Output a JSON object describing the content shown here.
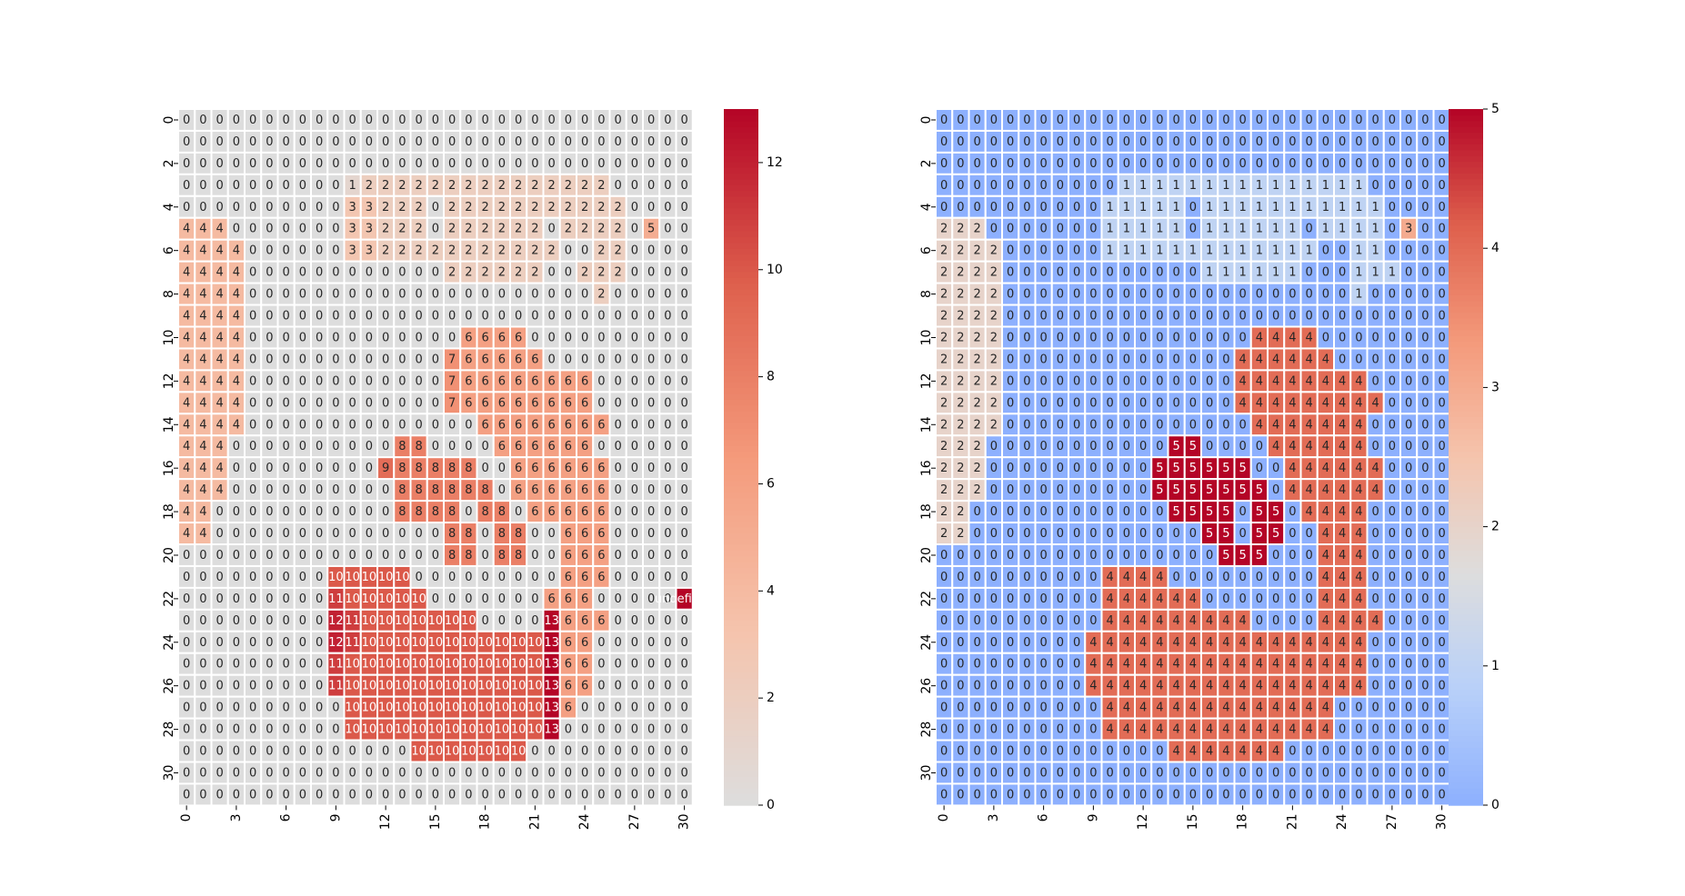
{
  "chart_data": [
    {
      "type": "heatmap",
      "vmin": 0,
      "vmax": 13,
      "colormap": "coolwarm (centered, light gray at 0)",
      "colorbar_ticks": [
        0,
        2,
        4,
        6,
        8,
        10,
        12
      ],
      "x_ticks": [
        0,
        3,
        6,
        9,
        12,
        15,
        18,
        21,
        24,
        27,
        30
      ],
      "y_ticks": [
        0,
        2,
        4,
        6,
        8,
        10,
        12,
        14,
        16,
        18,
        20,
        22,
        24,
        26,
        28,
        30
      ],
      "grid": [
        "0000000000000000000000000000000",
        "0000000000000000000000000000000",
        "0000000000000000000000000000000",
        "0000000000122222222222222200000",
        "0000000000332220222222222220000",
        "4440000000332220222222022220500",
        "4444000000332222222222200220000",
        "4444000000000000222222002220000",
        "4444000000000000000000000200000",
        "4444000000000000000000000000000",
        "4444000000000000066660000000000",
        "4444000000000000766666000000000",
        "4444000000000000766666666000000",
        "4444000000000000766666666000000",
        "4444000000000000006666666600000",
        "4440000000000880000666666000000",
        "4440000000009888880066666600000",
        "4440000000000888888066666600000",
        "4400000000000888808806666600000",
        "4400000000000000880880066600000",
        "0000000000000000880880066600000",
        "000000000AAAAA00000000066600000",
        "000000000BAAAAA000000066600000",
        "000000000CBAAAAAAA0000D66600000",
        "000000000CBAAAAAAAAAAAD66000000",
        "000000000BAAAAAAAAAAAAD66000000",
        "000000000BAAAAAAAAAAAAD66000000",
        "0000000000AAAAAAAAAAAAD60000000",
        "0000000000AAAAAAAAAAAAD00000000",
        "00000000000000AAAAAAA0000000000",
        "0000000000000000000000000000000",
        "0000000000000000000000000000000"
      ]
    },
    {
      "type": "heatmap",
      "vmin": 0,
      "vmax": 5,
      "colormap": "coolwarm",
      "colorbar_ticks": [
        0,
        1,
        2,
        3,
        4,
        5
      ],
      "x_ticks": [
        0,
        3,
        6,
        9,
        12,
        15,
        18,
        21,
        24,
        27,
        30
      ],
      "y_ticks": [
        0,
        2,
        4,
        6,
        8,
        10,
        12,
        14,
        16,
        18,
        20,
        22,
        24,
        26,
        28,
        30
      ],
      "grid": [
        "0000000000000000000000000000000",
        "0000000000000000000000000000000",
        "0000000000000000000000000000000",
        "0000000000011111111111111100000",
        "0000000000111110111111111110000",
        "2220000000111110111111011110300",
        "2222000000111111111111100110000",
        "2222000000000000111111000111000",
        "2222000000000000000000000100000",
        "2222000000000000000000000000000",
        "2222000000000000000444400000000",
        "2222000000000000004444440000000",
        "2222000000000000004444444400000",
        "2222000000000000004444444440000",
        "2222000000000000000444444400000",
        "2220000000000055000044444400000",
        "2220000000000555555004444440000",
        "2220000000000555555504444440000",
        "2200000000000055550550444400000",
        "2200000000000000550550044400000",
        "0000000000000000055500044400000",
        "0000000000444400000000044400000",
        "0000000000444444000000044400000",
        "0000000000444444444000044440000",
        "0000000004444444444444444400000",
        "0000000004444444444444444400000",
        "0000000004444444444444444400000",
        "0000000000444444444444440000000",
        "0000000000444444444444440000000",
        "0000000000000044444440000000000",
        "0000000000000000000000000000000",
        "0000000000000000000000000000000"
      ]
    }
  ]
}
